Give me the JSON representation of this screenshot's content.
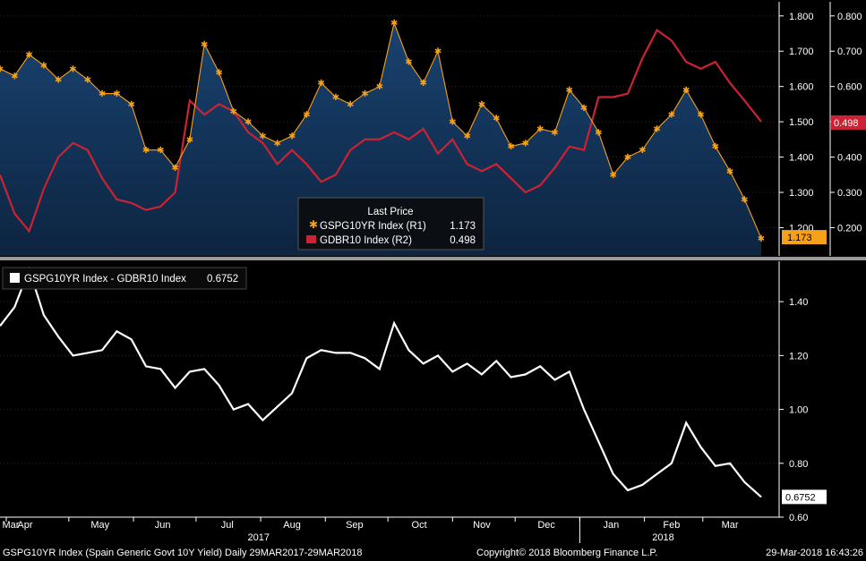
{
  "chart_data": [
    {
      "type": "line",
      "legend": {
        "title": "Last Price",
        "entries": [
          {
            "label": "GSPG10YR Index  (R1)",
            "value": "1.173",
            "color": "#f7a11a",
            "marker": "star"
          },
          {
            "label": "GDBR10 Index  (R2)",
            "value": "0.498",
            "color": "#cc2233",
            "marker": "square"
          }
        ]
      },
      "axes": {
        "r1": {
          "ticks": [
            "1.800",
            "1.700",
            "1.600",
            "1.500",
            "1.400",
            "1.300",
            "1.200"
          ],
          "ylim": [
            1.12,
            1.84
          ]
        },
        "r2": {
          "ticks": [
            "0.800",
            "0.700",
            "0.600",
            "0.500",
            "0.400",
            "0.300",
            "0.200"
          ],
          "ylim": [
            0.12,
            0.84
          ]
        }
      },
      "last_value_labels": {
        "r1": "1.173",
        "r2": "0.498"
      },
      "series": [
        {
          "name": "GSPG10YR Index",
          "axis": "r1",
          "color": "#f7a11a",
          "x": [
            "2017-03-29",
            "2017-04-05",
            "2017-04-12",
            "2017-04-19",
            "2017-04-26",
            "2017-05-03",
            "2017-05-10",
            "2017-05-17",
            "2017-05-24",
            "2017-05-31",
            "2017-06-07",
            "2017-06-14",
            "2017-06-21",
            "2017-06-28",
            "2017-07-05",
            "2017-07-12",
            "2017-07-19",
            "2017-07-26",
            "2017-08-02",
            "2017-08-09",
            "2017-08-16",
            "2017-08-23",
            "2017-08-30",
            "2017-09-06",
            "2017-09-13",
            "2017-09-20",
            "2017-09-27",
            "2017-10-04",
            "2017-10-11",
            "2017-10-18",
            "2017-10-25",
            "2017-11-01",
            "2017-11-08",
            "2017-11-15",
            "2017-11-22",
            "2017-11-29",
            "2017-12-06",
            "2017-12-13",
            "2017-12-20",
            "2017-12-27",
            "2018-01-03",
            "2018-01-10",
            "2018-01-17",
            "2018-01-24",
            "2018-01-31",
            "2018-02-07",
            "2018-02-14",
            "2018-02-21",
            "2018-02-28",
            "2018-03-07",
            "2018-03-14",
            "2018-03-21",
            "2018-03-29"
          ],
          "values": [
            1.65,
            1.63,
            1.69,
            1.66,
            1.62,
            1.65,
            1.62,
            1.58,
            1.58,
            1.55,
            1.42,
            1.42,
            1.37,
            1.45,
            1.72,
            1.64,
            1.53,
            1.5,
            1.46,
            1.44,
            1.46,
            1.52,
            1.61,
            1.57,
            1.55,
            1.58,
            1.6,
            1.78,
            1.67,
            1.61,
            1.7,
            1.5,
            1.46,
            1.55,
            1.51,
            1.43,
            1.44,
            1.48,
            1.47,
            1.59,
            1.54,
            1.47,
            1.35,
            1.4,
            1.42,
            1.48,
            1.52,
            1.59,
            1.52,
            1.43,
            1.36,
            1.28,
            1.17
          ]
        },
        {
          "name": "GDBR10 Index",
          "axis": "r2",
          "color": "#cc2233",
          "x": [
            "2017-03-29",
            "2017-04-05",
            "2017-04-12",
            "2017-04-19",
            "2017-04-26",
            "2017-05-03",
            "2017-05-10",
            "2017-05-17",
            "2017-05-24",
            "2017-05-31",
            "2017-06-07",
            "2017-06-14",
            "2017-06-21",
            "2017-06-28",
            "2017-07-05",
            "2017-07-12",
            "2017-07-19",
            "2017-07-26",
            "2017-08-02",
            "2017-08-09",
            "2017-08-16",
            "2017-08-23",
            "2017-08-30",
            "2017-09-06",
            "2017-09-13",
            "2017-09-20",
            "2017-09-27",
            "2017-10-04",
            "2017-10-11",
            "2017-10-18",
            "2017-10-25",
            "2017-11-01",
            "2017-11-08",
            "2017-11-15",
            "2017-11-22",
            "2017-11-29",
            "2017-12-06",
            "2017-12-13",
            "2017-12-20",
            "2017-12-27",
            "2018-01-03",
            "2018-01-10",
            "2018-01-17",
            "2018-01-24",
            "2018-01-31",
            "2018-02-07",
            "2018-02-14",
            "2018-02-21",
            "2018-02-28",
            "2018-03-07",
            "2018-03-14",
            "2018-03-21",
            "2018-03-29"
          ],
          "values": [
            0.35,
            0.24,
            0.19,
            0.31,
            0.4,
            0.44,
            0.42,
            0.34,
            0.28,
            0.27,
            0.25,
            0.26,
            0.3,
            0.56,
            0.52,
            0.55,
            0.53,
            0.47,
            0.44,
            0.38,
            0.42,
            0.38,
            0.33,
            0.35,
            0.42,
            0.45,
            0.45,
            0.47,
            0.45,
            0.48,
            0.41,
            0.45,
            0.38,
            0.36,
            0.38,
            0.34,
            0.3,
            0.32,
            0.37,
            0.43,
            0.42,
            0.57,
            0.57,
            0.58,
            0.68,
            0.76,
            0.73,
            0.67,
            0.65,
            0.67,
            0.61,
            0.56,
            0.5
          ]
        }
      ]
    },
    {
      "type": "line",
      "legend": {
        "entries": [
          {
            "label": "GSPG10YR Index - GDBR10 Index",
            "value": "0.6752",
            "color": "#ffffff"
          }
        ]
      },
      "axes": {
        "right": {
          "ticks": [
            "1.40",
            "1.20",
            "1.00",
            "0.80",
            "0.60"
          ],
          "ylim": [
            0.6,
            1.55
          ]
        }
      },
      "last_value_label": "0.6752",
      "series": [
        {
          "name": "GSPG10YR Index - GDBR10 Index",
          "color": "#ffffff",
          "x": [
            "2017-03-29",
            "2017-04-05",
            "2017-04-12",
            "2017-04-19",
            "2017-04-26",
            "2017-05-03",
            "2017-05-10",
            "2017-05-17",
            "2017-05-24",
            "2017-05-31",
            "2017-06-07",
            "2017-06-14",
            "2017-06-21",
            "2017-06-28",
            "2017-07-05",
            "2017-07-12",
            "2017-07-19",
            "2017-07-26",
            "2017-08-02",
            "2017-08-09",
            "2017-08-16",
            "2017-08-23",
            "2017-08-30",
            "2017-09-06",
            "2017-09-13",
            "2017-09-20",
            "2017-09-27",
            "2017-10-04",
            "2017-10-11",
            "2017-10-18",
            "2017-10-25",
            "2017-11-01",
            "2017-11-08",
            "2017-11-15",
            "2017-11-22",
            "2017-11-29",
            "2017-12-06",
            "2017-12-13",
            "2017-12-20",
            "2017-12-27",
            "2018-01-03",
            "2018-01-10",
            "2018-01-17",
            "2018-01-24",
            "2018-01-31",
            "2018-02-07",
            "2018-02-14",
            "2018-02-21",
            "2018-02-28",
            "2018-03-07",
            "2018-03-14",
            "2018-03-21",
            "2018-03-29"
          ],
          "values": [
            1.31,
            1.38,
            1.52,
            1.35,
            1.27,
            1.2,
            1.21,
            1.22,
            1.29,
            1.26,
            1.16,
            1.15,
            1.08,
            1.14,
            1.15,
            1.09,
            1.0,
            1.02,
            0.96,
            1.01,
            1.06,
            1.19,
            1.22,
            1.21,
            1.21,
            1.19,
            1.15,
            1.32,
            1.22,
            1.17,
            1.2,
            1.14,
            1.17,
            1.13,
            1.18,
            1.12,
            1.13,
            1.16,
            1.11,
            1.14,
            1.0,
            0.88,
            0.76,
            0.7,
            0.72,
            0.76,
            0.8,
            0.95,
            0.86,
            0.79,
            0.8,
            0.73,
            0.675
          ]
        }
      ]
    }
  ],
  "x_axis": {
    "months": [
      "Mar",
      "Apr",
      "May",
      "Jun",
      "Jul",
      "Aug",
      "Sep",
      "Oct",
      "Nov",
      "Dec",
      "Jan",
      "Feb",
      "Mar"
    ],
    "years": [
      "2017",
      "2018"
    ]
  },
  "footer": {
    "left": "GSPG10YR Index (Spain Generic Govt 10Y Yield)  Daily 29MAR2017-29MAR2018",
    "center": "Copyright© 2018 Bloomberg Finance L.P.",
    "right": "29-Mar-2018 16:43:26"
  },
  "colors": {
    "background": "#000000",
    "area": "#14365e",
    "orange": "#f7a11a",
    "red": "#cc2233",
    "white": "#ffffff"
  }
}
